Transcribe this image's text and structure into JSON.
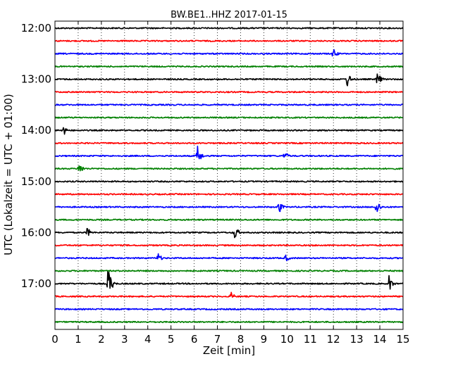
{
  "chart_data": {
    "type": "line",
    "title": "BW.BE1..HHZ 2017-01-15",
    "xlabel": "Zeit  [min]",
    "ylabel": "UTC (Lokalzeit = UTC + 01:00)",
    "xlim": [
      0,
      15
    ],
    "x_ticks": [
      "0",
      "1",
      "2",
      "3",
      "4",
      "5",
      "6",
      "7",
      "8",
      "9",
      "10",
      "11",
      "12",
      "13",
      "14",
      "15"
    ],
    "y_ticks": [
      "12:00",
      "13:00",
      "14:00",
      "15:00",
      "16:00",
      "17:00"
    ],
    "trace_interval_min": 15,
    "grid": "vertical dotted",
    "colors": [
      "#000000",
      "#ff0000",
      "#0000ff",
      "#008000"
    ],
    "series": [
      {
        "time": "12:00",
        "color_index": 0,
        "events": []
      },
      {
        "time": "12:15",
        "color_index": 1,
        "events": []
      },
      {
        "time": "12:30",
        "color_index": 2,
        "events": [
          {
            "t": 12.0,
            "amp": 0.35
          }
        ]
      },
      {
        "time": "12:45",
        "color_index": 3,
        "events": []
      },
      {
        "time": "13:00",
        "color_index": 0,
        "events": [
          {
            "t": 12.6,
            "amp": 0.45
          },
          {
            "t": 13.9,
            "amp": 0.45
          }
        ]
      },
      {
        "time": "13:15",
        "color_index": 1,
        "events": []
      },
      {
        "time": "13:30",
        "color_index": 2,
        "events": []
      },
      {
        "time": "13:45",
        "color_index": 3,
        "events": []
      },
      {
        "time": "14:00",
        "color_index": 0,
        "events": [
          {
            "t": 0.35,
            "amp": 0.35
          }
        ]
      },
      {
        "time": "14:15",
        "color_index": 1,
        "events": []
      },
      {
        "time": "14:30",
        "color_index": 2,
        "events": [
          {
            "t": 6.15,
            "amp": 0.6
          },
          {
            "t": 9.9,
            "amp": 0.3
          }
        ]
      },
      {
        "time": "14:45",
        "color_index": 3,
        "events": [
          {
            "t": 1.05,
            "amp": 0.4
          }
        ]
      },
      {
        "time": "15:00",
        "color_index": 0,
        "events": []
      },
      {
        "time": "15:15",
        "color_index": 1,
        "events": []
      },
      {
        "time": "15:30",
        "color_index": 2,
        "events": [
          {
            "t": 9.65,
            "amp": 0.4
          },
          {
            "t": 13.85,
            "amp": 0.5
          }
        ]
      },
      {
        "time": "15:45",
        "color_index": 3,
        "events": []
      },
      {
        "time": "16:00",
        "color_index": 0,
        "events": [
          {
            "t": 1.4,
            "amp": 0.3
          },
          {
            "t": 7.75,
            "amp": 0.45
          }
        ]
      },
      {
        "time": "16:15",
        "color_index": 1,
        "events": []
      },
      {
        "time": "16:30",
        "color_index": 2,
        "events": [
          {
            "t": 4.45,
            "amp": 0.3
          },
          {
            "t": 9.95,
            "amp": 0.25
          }
        ]
      },
      {
        "time": "16:45",
        "color_index": 3,
        "events": []
      },
      {
        "time": "17:00",
        "color_index": 0,
        "events": [
          {
            "t": 2.3,
            "amp": 1.0
          },
          {
            "t": 14.4,
            "amp": 0.5
          }
        ]
      },
      {
        "time": "17:15",
        "color_index": 1,
        "events": [
          {
            "t": 7.6,
            "amp": 0.25
          }
        ]
      },
      {
        "time": "17:30",
        "color_index": 2,
        "events": []
      },
      {
        "time": "17:45",
        "color_index": 3,
        "events": []
      }
    ]
  }
}
